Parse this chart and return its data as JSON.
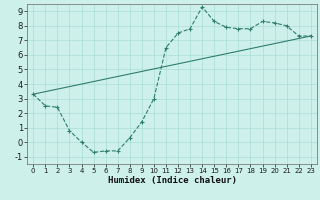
{
  "xlabel": "Humidex (Indice chaleur)",
  "background_color": "#cef0ea",
  "grid_color": "#aaddd6",
  "line_color": "#2e7d6e",
  "line1_x": [
    0,
    1,
    2,
    3,
    4,
    5,
    6,
    7,
    8,
    9,
    10,
    11,
    12,
    13,
    14,
    15,
    16,
    17,
    18,
    19,
    20,
    21,
    22,
    23
  ],
  "line1_y": [
    3.3,
    2.5,
    2.4,
    0.8,
    0.0,
    -0.7,
    -0.6,
    -0.6,
    0.3,
    1.4,
    3.0,
    6.5,
    7.5,
    7.8,
    9.3,
    8.3,
    7.9,
    7.8,
    7.8,
    8.3,
    8.2,
    8.0,
    7.3,
    7.3
  ],
  "line2_x": [
    0,
    23
  ],
  "line2_y": [
    3.3,
    7.3
  ],
  "xlim": [
    -0.5,
    23.5
  ],
  "ylim": [
    -1.5,
    9.5
  ],
  "xticks": [
    0,
    1,
    2,
    3,
    4,
    5,
    6,
    7,
    8,
    9,
    10,
    11,
    12,
    13,
    14,
    15,
    16,
    17,
    18,
    19,
    20,
    21,
    22,
    23
  ],
  "yticks": [
    -1,
    0,
    1,
    2,
    3,
    4,
    5,
    6,
    7,
    8,
    9
  ]
}
